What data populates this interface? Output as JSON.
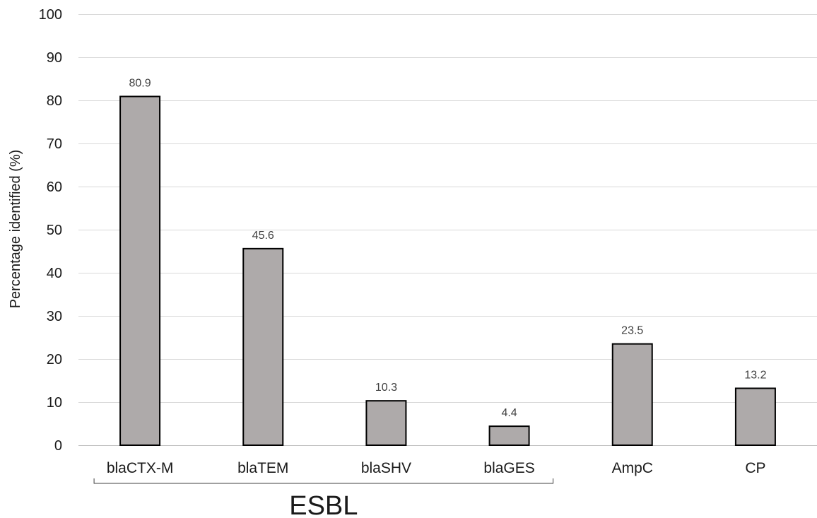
{
  "chart_data": {
    "type": "bar",
    "categories": [
      "blaCTX-M",
      "blaTEM",
      "blaSHV",
      "blaGES",
      "AmpC",
      "CP"
    ],
    "values": [
      80.9,
      45.6,
      10.3,
      4.4,
      23.5,
      13.2
    ],
    "data_labels": [
      "80.9",
      "45.6",
      "10.3",
      "4.4",
      "23.5",
      "13.2"
    ],
    "title": "",
    "xlabel": "",
    "ylabel": "Percentage identified (%)",
    "ylim": [
      0,
      100
    ],
    "yticks": [
      0,
      10,
      20,
      30,
      40,
      50,
      60,
      70,
      80,
      90,
      100
    ],
    "grid": true,
    "legend": "none",
    "bar_color": "#aeaaaa",
    "bar_edge_color": "#000000",
    "grid_color": "#d9d9d9",
    "group_annotation": {
      "label": "ESBL",
      "categories": [
        "blaCTX-M",
        "blaTEM",
        "blaSHV",
        "blaGES"
      ]
    }
  }
}
